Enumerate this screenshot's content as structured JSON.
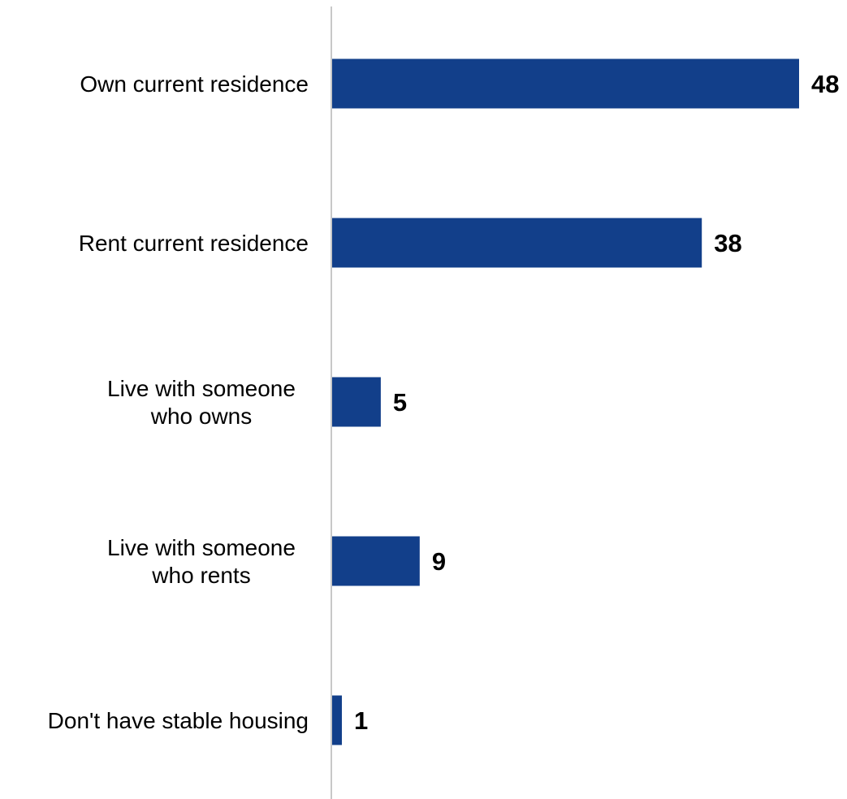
{
  "chart_data": {
    "type": "bar",
    "orientation": "horizontal",
    "categories": [
      [
        "Own current residence"
      ],
      [
        "Rent current residence"
      ],
      [
        "Live with someone",
        "who owns"
      ],
      [
        "Live with someone",
        "who rents"
      ],
      [
        "Don't have stable housing"
      ]
    ],
    "values": [
      48,
      38,
      5,
      9,
      1
    ],
    "value_labels": [
      "48",
      "38",
      "5",
      "9",
      "1"
    ],
    "title": "",
    "xlabel": "",
    "ylabel": "",
    "xlim": [
      0,
      48
    ],
    "grid": false,
    "legend": "none",
    "bar_color": "#123f8a",
    "axis_color": "#c8c8c8"
  }
}
